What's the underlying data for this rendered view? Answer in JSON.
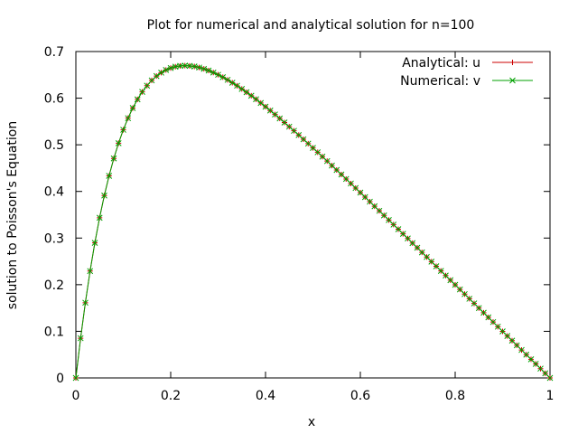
{
  "chart_data": {
    "type": "line",
    "title": "Plot for numerical and analytical solution for n=100",
    "xlabel": "x",
    "ylabel": "solution to Poisson's Equation",
    "xlim": [
      0,
      1
    ],
    "ylim": [
      0,
      0.7
    ],
    "x_ticks": [
      "0",
      "0.2",
      "0.4",
      "0.6",
      "0.8",
      "1"
    ],
    "y_ticks": [
      "0",
      "0.1",
      "0.2",
      "0.3",
      "0.4",
      "0.5",
      "0.6",
      "0.7"
    ],
    "grid": false,
    "legend_position": "top-right",
    "points": 101,
    "function": "u(x) = 1 - (1 - e^-10) x - e^(-10 x)",
    "series": [
      {
        "name": "Analytical: u",
        "color": "#cc0000",
        "marker": "plus",
        "line": true
      },
      {
        "name": "Numerical: v",
        "color": "#00a000",
        "marker": "x",
        "line": true
      }
    ]
  }
}
